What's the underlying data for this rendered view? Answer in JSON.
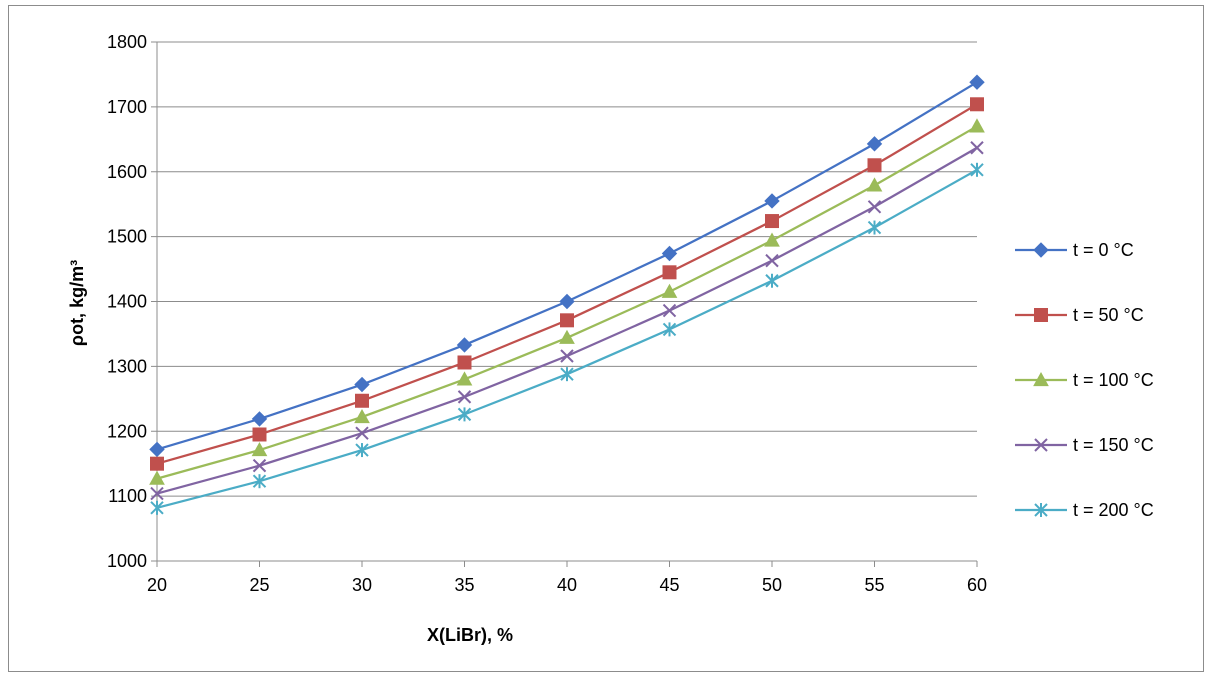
{
  "chart_data": {
    "type": "line",
    "x": [
      20,
      25,
      30,
      35,
      40,
      45,
      50,
      55,
      60
    ],
    "xlabel": "X(LiBr), %",
    "ylabel": "ρot, kg/m³",
    "xlim": [
      20,
      60
    ],
    "ylim": [
      1000,
      1800
    ],
    "x_ticks": [
      "20",
      "25",
      "30",
      "35",
      "40",
      "45",
      "50",
      "55",
      "60"
    ],
    "y_ticks": [
      "1000",
      "1100",
      "1200",
      "1300",
      "1400",
      "1500",
      "1600",
      "1700",
      "1800"
    ],
    "grid": "horizontal",
    "legend_position": "right",
    "series": [
      {
        "name": "t = 0 °C",
        "color": "#4472c4",
        "marker": "diamond",
        "values": [
          1172,
          1219,
          1272,
          1333,
          1400,
          1474,
          1555,
          1643,
          1738
        ]
      },
      {
        "name": "t = 50 °C",
        "color": "#c0504d",
        "marker": "square",
        "values": [
          1150,
          1195,
          1247,
          1306,
          1371,
          1445,
          1524,
          1610,
          1704
        ]
      },
      {
        "name": "t = 100 °C",
        "color": "#9bbb59",
        "marker": "triangle",
        "values": [
          1127,
          1171,
          1222,
          1280,
          1344,
          1415,
          1494,
          1579,
          1670
        ]
      },
      {
        "name": "t = 150 °C",
        "color": "#8064a2",
        "marker": "x",
        "values": [
          1104,
          1147,
          1197,
          1253,
          1316,
          1386,
          1463,
          1546,
          1637
        ]
      },
      {
        "name": "t = 200 °C",
        "color": "#4bacc6",
        "marker": "star",
        "values": [
          1082,
          1123,
          1171,
          1226,
          1288,
          1357,
          1432,
          1514,
          1603
        ]
      }
    ]
  }
}
